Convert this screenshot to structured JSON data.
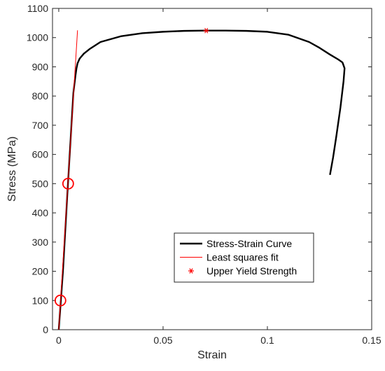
{
  "chart_data": {
    "type": "line",
    "xlabel": "Strain",
    "ylabel": "Stress (MPa)",
    "xlim": [
      -0.003,
      0.15
    ],
    "ylim": [
      0,
      1100
    ],
    "xticks": [
      0,
      0.05,
      0.1,
      0.15
    ],
    "xtick_labels": [
      "0",
      "0.05",
      "0.1",
      "0.15"
    ],
    "yticks": [
      0,
      100,
      200,
      300,
      400,
      500,
      600,
      700,
      800,
      900,
      1000,
      1100
    ],
    "ytick_labels": [
      "0",
      "100",
      "200",
      "300",
      "400",
      "500",
      "600",
      "700",
      "800",
      "900",
      "1000",
      "1100"
    ],
    "grid": false,
    "legend_position": "lower-right",
    "series": [
      {
        "name": "Stress-Strain Curve",
        "kind": "line",
        "color": "#000000",
        "x": [
          0.0,
          0.002,
          0.004,
          0.006,
          0.007,
          0.008,
          0.0085,
          0.009,
          0.01,
          0.012,
          0.015,
          0.02,
          0.03,
          0.04,
          0.05,
          0.06,
          0.07,
          0.08,
          0.09,
          0.1,
          0.11,
          0.12,
          0.125,
          0.13,
          0.134,
          0.136,
          0.137,
          0.1365,
          0.135,
          0.133,
          0.1315,
          0.13
        ],
        "y": [
          0,
          200,
          450,
          690,
          810,
          870,
          895,
          912,
          928,
          945,
          962,
          985,
          1005,
          1015,
          1020,
          1023,
          1024,
          1024,
          1023,
          1020,
          1010,
          985,
          965,
          942,
          925,
          915,
          895,
          850,
          760,
          660,
          590,
          530
        ]
      },
      {
        "name": "Least squares fit",
        "kind": "line",
        "color": "#ff0000",
        "x": [
          0.0,
          0.009
        ],
        "y": [
          0,
          1025
        ]
      },
      {
        "name": "Upper Yield Strength",
        "kind": "marker",
        "marker": "asterisk",
        "color": "#ff0000",
        "x": [
          0.0707
        ],
        "y": [
          1024
        ]
      }
    ],
    "fit_range_markers": {
      "kind": "open-circle",
      "color": "#ff0000",
      "x": [
        0.0008,
        0.0045
      ],
      "y": [
        100,
        500
      ]
    }
  }
}
